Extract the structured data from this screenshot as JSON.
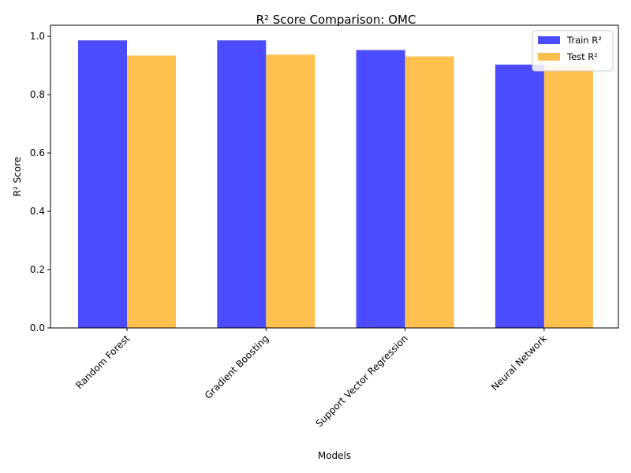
{
  "chart_data": {
    "type": "bar",
    "title": "R² Score Comparison: OMC",
    "xlabel": "Models",
    "ylabel": "R² Score",
    "categories": [
      "Random Forest",
      "Gradient Boosting",
      "Support Vector Regression",
      "Neural Network"
    ],
    "series": [
      {
        "name": "Train R²",
        "color": "#4b4bff",
        "values": [
          0.986,
          0.986,
          0.953,
          0.903
        ]
      },
      {
        "name": "Test R²",
        "color": "#ffc050",
        "values": [
          0.934,
          0.937,
          0.931,
          0.895
        ]
      }
    ],
    "ylim": [
      0,
      1.038
    ],
    "yticks": [
      "0.0",
      "0.2",
      "0.4",
      "0.6",
      "0.8",
      "1.0"
    ],
    "grid": false,
    "legend_position": "top-right"
  }
}
